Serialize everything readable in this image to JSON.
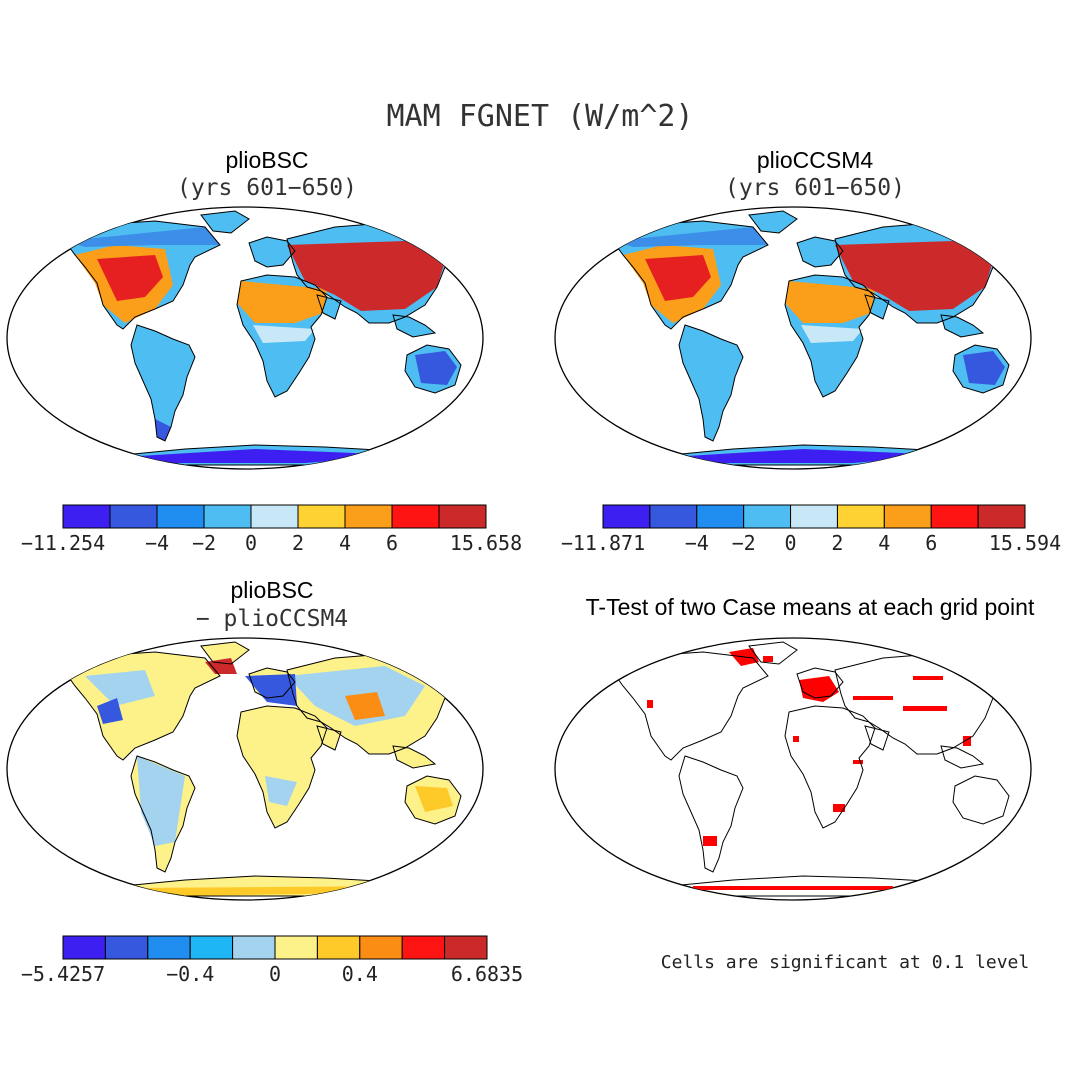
{
  "figure": {
    "title": "MAM FGNET (W/m^2)"
  },
  "panels": [
    {
      "title": "plioBSC",
      "subtitle": "(yrs 601−650)",
      "field": "absolute"
    },
    {
      "title": "plioCCSM4",
      "subtitle": "(yrs 601−650)",
      "field": "absolute"
    },
    {
      "title": "plioBSC",
      "subtitle": "− plioCCSM4",
      "field": "difference"
    },
    {
      "title": "T-Test of two Case means at each grid point",
      "subtitle": "",
      "field": "significance",
      "note": "Cells are significant at 0.1 level"
    }
  ],
  "colorbars": [
    {
      "colors": [
        "#3d1ff2",
        "#3558de",
        "#1f8ef0",
        "#4dbdf2",
        "#c8e8f7",
        "#fed233",
        "#fb9f1a",
        "#ff1414",
        "#cc2a2a"
      ],
      "labels": [
        "−11.254",
        "−4",
        "−2",
        "0",
        "2",
        "4",
        "6",
        "15.658"
      ]
    },
    {
      "colors": [
        "#3d1ff2",
        "#3558de",
        "#1f8ef0",
        "#4dbdf2",
        "#c8e8f7",
        "#fed233",
        "#fb9f1a",
        "#ff1414",
        "#cc2a2a"
      ],
      "labels": [
        "−11.871",
        "−4",
        "−2",
        "0",
        "2",
        "4",
        "6",
        "15.594"
      ]
    },
    {
      "colors": [
        "#3d1ff2",
        "#3558de",
        "#1f8ef0",
        "#1fb6f5",
        "#a3d3ee",
        "#fdf18a",
        "#feca2a",
        "#fb8c14",
        "#ff1414",
        "#cc2a2a"
      ],
      "labels": [
        "−5.4257",
        "−0.4",
        "0",
        "0.4",
        "6.6835"
      ]
    }
  ],
  "significance_color": "#ff0000"
}
